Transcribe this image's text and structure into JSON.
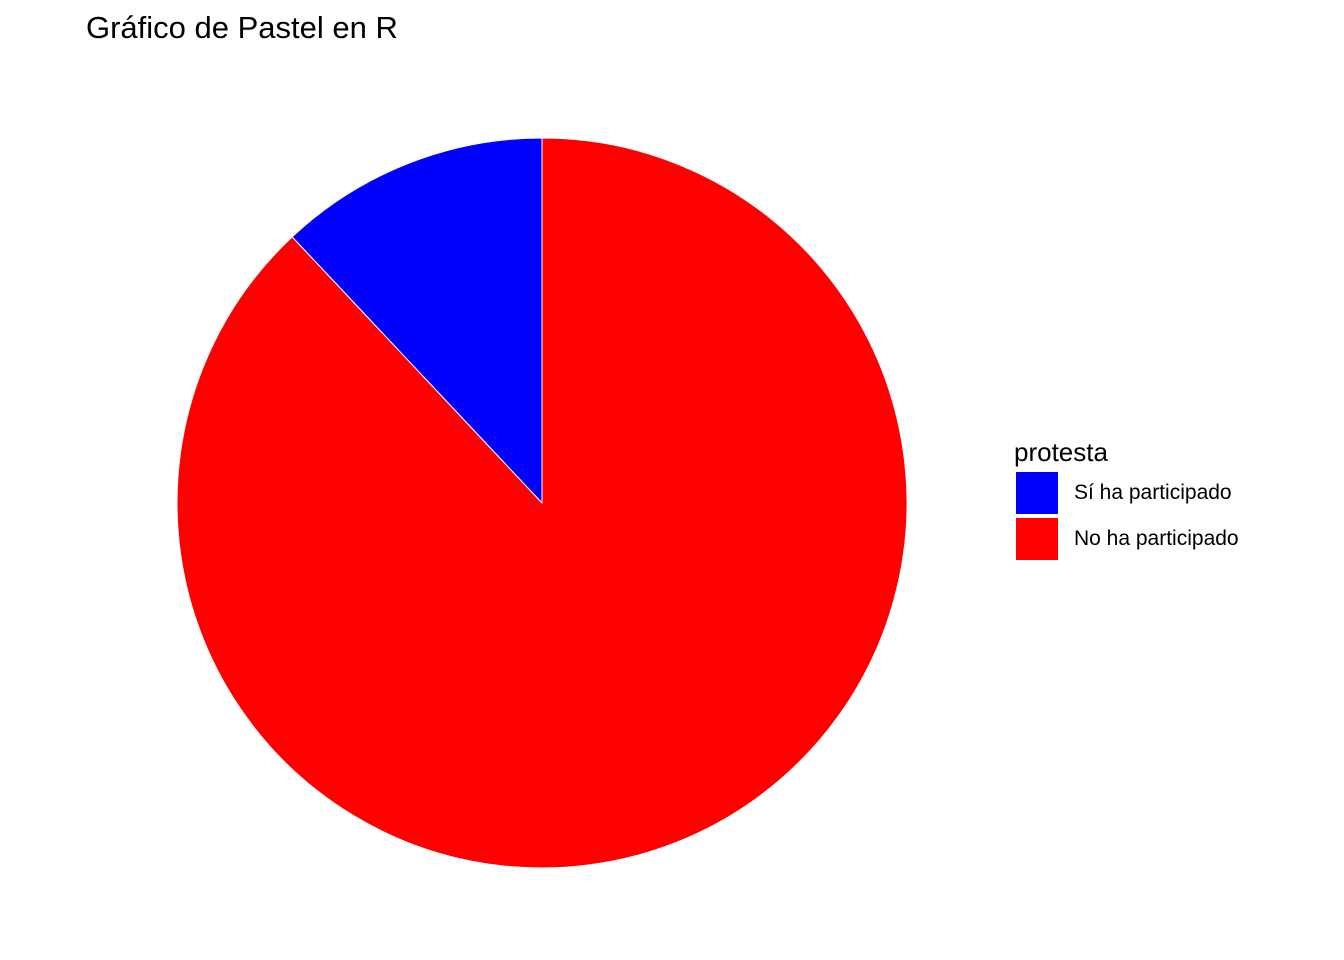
{
  "chart_data": {
    "type": "pie",
    "title": "Gráfico de Pastel en R",
    "legend_title": "protesta",
    "legend_position": "right",
    "start_angle": "top",
    "direction": "counterclockwise",
    "slices": [
      {
        "label": "Sí ha participado",
        "value": 0.12,
        "color": "#0000FF"
      },
      {
        "label": "No ha participado",
        "value": 0.88,
        "color": "#FF0000"
      }
    ]
  }
}
